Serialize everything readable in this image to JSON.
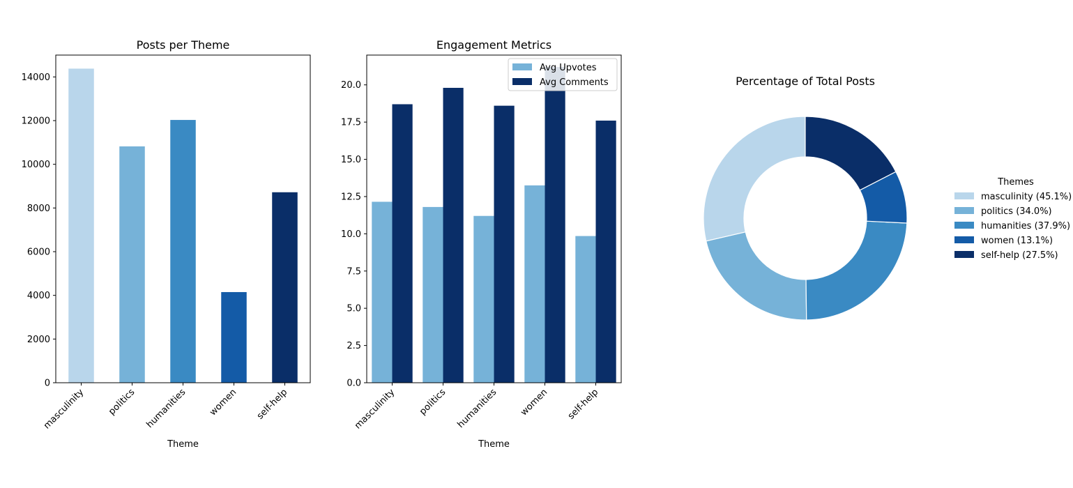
{
  "colors": {
    "masculinity": "#b9d6eb",
    "politics": "#76b2d8",
    "humanities": "#3a8ac3",
    "women": "#145ba7",
    "self_help": "#0a2e68",
    "avg_upvotes": "#76b2d8",
    "avg_comments": "#0a2e68"
  },
  "chart_data": [
    {
      "type": "bar",
      "title": "Posts per Theme",
      "xlabel": "Theme",
      "ylabel": "",
      "categories": [
        "masculinity",
        "politics",
        "humanities",
        "women",
        "self-help"
      ],
      "values": [
        14380,
        10820,
        12030,
        4150,
        8720
      ],
      "ylim": [
        0,
        15000
      ],
      "yticks": [
        0,
        2000,
        4000,
        6000,
        8000,
        10000,
        12000,
        14000
      ],
      "ytick_labels": [
        "0",
        "2000",
        "4000",
        "6000",
        "8000",
        "10000",
        "12000",
        "14000"
      ],
      "grid": false
    },
    {
      "type": "bar",
      "title": "Engagement Metrics",
      "xlabel": "Theme",
      "ylabel": "",
      "categories": [
        "masculinity",
        "politics",
        "humanities",
        "women",
        "self-help"
      ],
      "series": [
        {
          "name": "Avg Upvotes",
          "values": [
            12.15,
            11.8,
            11.2,
            13.25,
            9.85
          ]
        },
        {
          "name": "Avg Comments",
          "values": [
            18.7,
            19.8,
            18.6,
            21.2,
            17.6
          ]
        }
      ],
      "ylim": [
        0,
        22
      ],
      "yticks": [
        0,
        2.5,
        5,
        7.5,
        10,
        12.5,
        15,
        17.5,
        20
      ],
      "ytick_labels": [
        "0.0",
        "2.5",
        "5.0",
        "7.5",
        "10.0",
        "12.5",
        "15.0",
        "17.5",
        "20.0"
      ],
      "legend_position": "upper-right",
      "grid": false
    },
    {
      "type": "pie",
      "subtype": "donut",
      "title": "Percentage of Total Posts",
      "labels": [
        "masculinity",
        "politics",
        "humanities",
        "women",
        "self-help"
      ],
      "values": [
        45.1,
        34.0,
        37.9,
        13.1,
        27.5
      ],
      "legend_title": "Themes",
      "legend_labels": [
        "masculinity (45.1%)",
        "politics (34.0%)",
        "humanities (37.9%)",
        "women (13.1%)",
        "self-help (27.5%)"
      ],
      "legend_position": "right"
    }
  ]
}
